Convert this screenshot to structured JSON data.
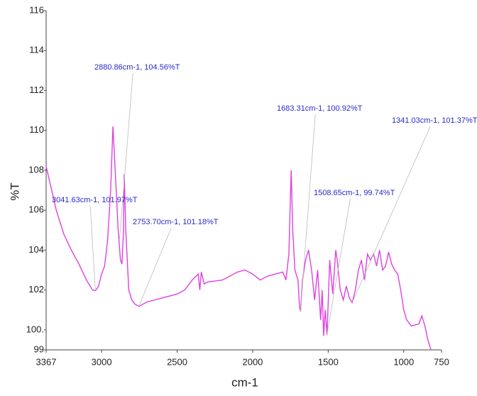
{
  "chart_data": {
    "type": "line",
    "xlabel": "cm-1",
    "ylabel": "%T",
    "xlim": [
      3367,
      750
    ],
    "ylim": [
      99,
      116
    ],
    "xticks": [
      3367,
      3000,
      2500,
      2000,
      1500,
      1000,
      750
    ],
    "yticks": [
      99,
      {
        "value": 100,
        "label": "100."
      },
      102,
      104,
      106,
      108,
      110,
      112,
      114,
      116
    ],
    "color": "#e040e0",
    "x": [
      3367,
      3300,
      3250,
      3200,
      3150,
      3100,
      3060,
      3040,
      3020,
      3000,
      2980,
      2960,
      2940,
      2925,
      2910,
      2890,
      2875,
      2865,
      2855,
      2850,
      2840,
      2820,
      2800,
      2780,
      2753,
      2700,
      2600,
      2500,
      2450,
      2400,
      2360,
      2350,
      2340,
      2320,
      2300,
      2200,
      2100,
      2050,
      2000,
      1950,
      1900,
      1850,
      1800,
      1780,
      1760,
      1745,
      1735,
      1720,
      1700,
      1690,
      1683,
      1670,
      1650,
      1630,
      1610,
      1590,
      1570,
      1550,
      1540,
      1530,
      1520,
      1508,
      1490,
      1470,
      1450,
      1440,
      1420,
      1400,
      1380,
      1360,
      1341,
      1320,
      1300,
      1280,
      1260,
      1240,
      1220,
      1200,
      1180,
      1160,
      1140,
      1120,
      1100,
      1080,
      1060,
      1040,
      1020,
      1000,
      980,
      950,
      900,
      880,
      860,
      840,
      820
    ],
    "values": [
      108.2,
      106,
      104.8,
      104,
      103.3,
      102.5,
      102,
      101.97,
      102.2,
      102.8,
      103.2,
      104.5,
      107,
      110.2,
      108,
      105,
      103.5,
      103.3,
      105,
      107.8,
      105,
      102,
      101.5,
      101.3,
      101.18,
      101.4,
      101.6,
      101.8,
      102,
      102.5,
      102.8,
      102,
      102.9,
      102.3,
      102.4,
      102.5,
      102.9,
      103,
      102.8,
      102.5,
      102.7,
      102.8,
      102.9,
      102.5,
      103.8,
      108,
      105,
      103,
      102.5,
      101.2,
      100.92,
      102.5,
      103.5,
      104,
      103,
      101.5,
      103,
      100.5,
      102,
      99.7,
      101,
      99.74,
      103.5,
      101.8,
      104,
      103.5,
      102,
      101.5,
      102.2,
      101.6,
      101.37,
      102,
      103,
      103.5,
      102.5,
      103.8,
      103.5,
      103.8,
      103.2,
      104,
      103,
      103.2,
      103.9,
      103.3,
      103,
      102.8,
      102,
      101,
      100.5,
      100.2,
      100.3,
      100.7,
      100.2,
      99.5,
      99
    ],
    "annotations": [
      {
        "text": "2880.86cm-1, 104.56%T",
        "x": 2880.86,
        "y": 104.56
      },
      {
        "text": "3041.63cm-1, 101.97%T",
        "x": 3041.63,
        "y": 101.97
      },
      {
        "text": "2753.70cm-1, 101.18%T",
        "x": 2753.7,
        "y": 101.18
      },
      {
        "text": "1683.31cm-1, 100.92%T",
        "x": 1683.31,
        "y": 100.92
      },
      {
        "text": "1508.65cm-1, 99.74%T",
        "x": 1508.65,
        "y": 99.74
      },
      {
        "text": "1341.03cm-1, 101.37%T",
        "x": 1341.03,
        "y": 101.37
      }
    ]
  }
}
